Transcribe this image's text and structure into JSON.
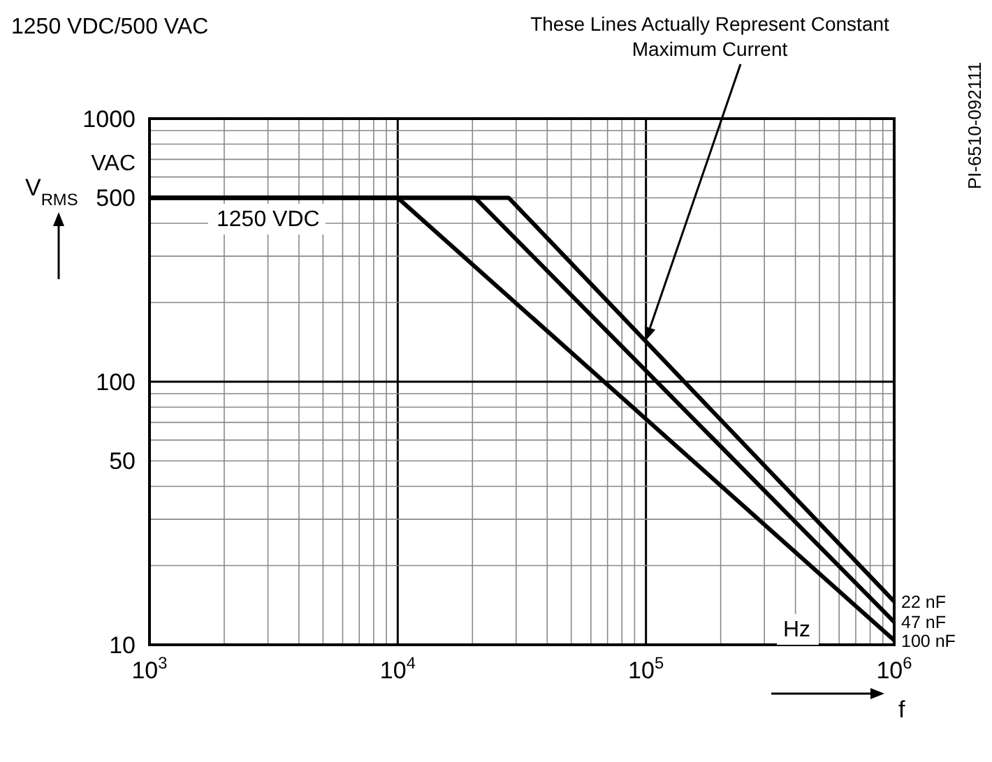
{
  "chart_data": {
    "type": "line",
    "title": "1250 VDC/500 VAC",
    "xlabel": "f",
    "ylabel": "V$_{RMS}$",
    "log": "xy",
    "grid": true,
    "legend": false,
    "xlim": [
      1000,
      1000000
    ],
    "ylim": [
      10,
      1000
    ],
    "xticks": [
      {
        "value": 1000,
        "label": "10$^{3}$"
      },
      {
        "value": 2000,
        "label": null
      },
      {
        "value": 3000,
        "label": null
      },
      {
        "value": 4000,
        "label": null
      },
      {
        "value": 5000,
        "label": null
      },
      {
        "value": 6000,
        "label": null
      },
      {
        "value": 7000,
        "label": null
      },
      {
        "value": 8000,
        "label": null
      },
      {
        "value": 9000,
        "label": null
      },
      {
        "value": 10000,
        "label": "10$^{4}$"
      },
      {
        "value": 20000,
        "label": null
      },
      {
        "value": 30000,
        "label": null
      },
      {
        "value": 40000,
        "label": null
      },
      {
        "value": 50000,
        "label": null
      },
      {
        "value": 60000,
        "label": null
      },
      {
        "value": 70000,
        "label": null
      },
      {
        "value": 80000,
        "label": null
      },
      {
        "value": 90000,
        "label": null
      },
      {
        "value": 100000,
        "label": "10$^{5}$"
      },
      {
        "value": 200000,
        "label": null
      },
      {
        "value": 300000,
        "label": null
      },
      {
        "value": 400000,
        "label": null
      },
      {
        "value": 500000,
        "label": null
      },
      {
        "value": 600000,
        "label": null
      },
      {
        "value": 700000,
        "label": null
      },
      {
        "value": 800000,
        "label": null
      },
      {
        "value": 900000,
        "label": null
      },
      {
        "value": 1000000,
        "label": "10$^{6}$"
      }
    ],
    "yticks": [
      10,
      {
        "value": 20,
        "label": null
      },
      {
        "value": 30,
        "label": null
      },
      {
        "value": 40,
        "label": null
      },
      50,
      {
        "value": 60,
        "label": null
      },
      {
        "value": 70,
        "label": null
      },
      {
        "value": 80,
        "label": null
      },
      {
        "value": 90,
        "label": null
      },
      100,
      {
        "value": 200,
        "label": null
      },
      {
        "value": 300,
        "label": null
      },
      {
        "value": 400,
        "label": null
      },
      500,
      {
        "value": 600,
        "label": null
      },
      {
        "value": 700,
        "label": null
      },
      {
        "value": 800,
        "label": null
      },
      {
        "value": 900,
        "label": null
      },
      1000
    ],
    "series": [
      {
        "name": "22 nF",
        "color": "#000000",
        "x": [
          1000,
          28000,
          1000000
        ],
        "values": [
          500,
          500,
          14.6
        ]
      },
      {
        "name": "47 nF",
        "color": "#000000",
        "x": [
          1000,
          20500,
          1000000
        ],
        "values": [
          500,
          500,
          12.2
        ]
      },
      {
        "name": "100 nF",
        "color": "#000000",
        "x": [
          1000,
          10000,
          1000000
        ],
        "values": [
          500,
          500,
          10.4
        ]
      }
    ],
    "annotations": [
      "These Lines Actually Represent Constant Maximum Current",
      "1250 VDC",
      "VAC",
      "Hz",
      "PI-6510-092111"
    ]
  }
}
